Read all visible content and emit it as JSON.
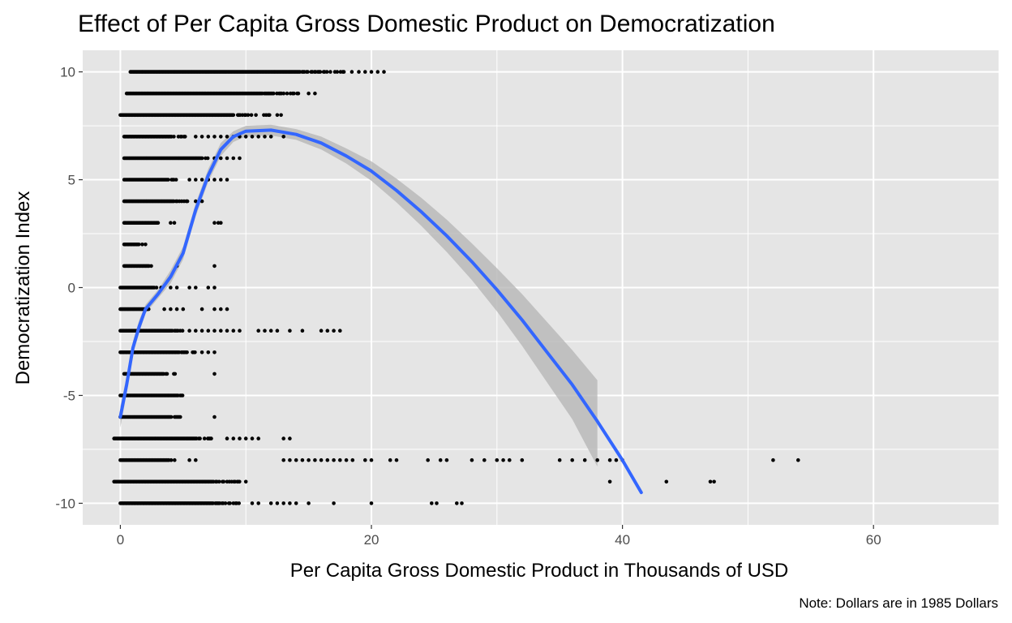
{
  "chart_data": {
    "type": "scatter",
    "title": "Effect of Per Capita Gross Domestic Product on Democratization",
    "xlabel": "Per Capita Gross Domestic Product in Thousands of USD",
    "ylabel": "Democratization Index",
    "caption": "Note: Dollars are in 1985 Dollars",
    "xlim": [
      -3,
      70
    ],
    "ylim": [
      -11,
      11
    ],
    "x_ticks": [
      0,
      20,
      40,
      60
    ],
    "y_ticks": [
      -10,
      -5,
      0,
      5,
      10
    ],
    "grid": true,
    "theme": "gray panel with white gridlines",
    "colors": {
      "panel": "#e5e5e5",
      "grid": "#ffffff",
      "points": "#000000",
      "smooth_line": "#3366ff",
      "ribbon": "#b3b3b3"
    },
    "points": {
      "y_levels": [
        -10,
        -9,
        -8,
        -7,
        -6,
        -5,
        -4,
        -3,
        -2,
        -1,
        0,
        1,
        2,
        3,
        4,
        5,
        6,
        7,
        8,
        9,
        10
      ],
      "dense_ranges": [
        {
          "y": 10,
          "x_from": 0.8,
          "x_to": 18.5
        },
        {
          "y": 9,
          "x_from": 0.5,
          "x_to": 14.5
        },
        {
          "y": 8,
          "x_from": 0.0,
          "x_to": 12.0
        },
        {
          "y": 7,
          "x_from": 0.3,
          "x_to": 5.5
        },
        {
          "y": 6,
          "x_from": 0.3,
          "x_to": 7.0
        },
        {
          "y": 5,
          "x_from": 0.3,
          "x_to": 4.5
        },
        {
          "y": 4,
          "x_from": 0.3,
          "x_to": 5.5
        },
        {
          "y": 3,
          "x_from": 0.3,
          "x_to": 3.5
        },
        {
          "y": 2,
          "x_from": 0.3,
          "x_to": 1.8
        },
        {
          "y": 1,
          "x_from": 0.3,
          "x_to": 2.8
        },
        {
          "y": 0,
          "x_from": 0.0,
          "x_to": 3.5
        },
        {
          "y": -1,
          "x_from": 0.0,
          "x_to": 2.5
        },
        {
          "y": -2,
          "x_from": 0.0,
          "x_to": 5.0
        },
        {
          "y": -3,
          "x_from": 0.0,
          "x_to": 6.0
        },
        {
          "y": -4,
          "x_from": 0.3,
          "x_to": 4.5
        },
        {
          "y": -5,
          "x_from": 0.0,
          "x_to": 5.5
        },
        {
          "y": -6,
          "x_from": 0.0,
          "x_to": 5.0
        },
        {
          "y": -7,
          "x_from": -0.5,
          "x_to": 8.0
        },
        {
          "y": -8,
          "x_from": 0.0,
          "x_to": 4.5
        },
        {
          "y": -9,
          "x_from": -0.5,
          "x_to": 9.5
        },
        {
          "y": -10,
          "x_from": 0.0,
          "x_to": 9.5
        }
      ],
      "extra": [
        {
          "y": 10,
          "x": [
            19.0,
            19.5,
            20.0,
            20.5,
            21.0
          ]
        },
        {
          "y": 9,
          "x": [
            15.0,
            15.5
          ]
        },
        {
          "y": 8,
          "x": [
            12.5,
            12.8
          ]
        },
        {
          "y": 7,
          "x": [
            6.0,
            6.5,
            7.0,
            7.5,
            8.0,
            8.5,
            9.0,
            9.5,
            10.0,
            10.5,
            11.0,
            11.5,
            12.0,
            13.0
          ]
        },
        {
          "y": 6,
          "x": [
            7.5,
            8.0,
            8.5,
            9.0,
            9.5
          ]
        },
        {
          "y": 5,
          "x": [
            5.5,
            6.0,
            6.5,
            7.0,
            7.5,
            8.0,
            8.5
          ]
        },
        {
          "y": 4,
          "x": [
            6.0,
            6.5
          ]
        },
        {
          "y": 3,
          "x": [
            4.0,
            4.3,
            7.5,
            7.8,
            8.0
          ]
        },
        {
          "y": 2,
          "x": [
            2.0
          ]
        },
        {
          "y": 1,
          "x": [
            4.5,
            7.5
          ]
        },
        {
          "y": 0,
          "x": [
            4.0,
            4.5,
            5.5,
            6.0,
            7.0,
            7.5
          ]
        },
        {
          "y": -1,
          "x": [
            3.5,
            4.0,
            4.5,
            5.0,
            6.5,
            7.5,
            8.0,
            8.5
          ]
        },
        {
          "y": -2,
          "x": [
            5.5,
            6.0,
            6.5,
            7.0,
            7.5,
            8.0,
            8.5,
            9.0,
            9.5,
            11.0,
            11.5,
            12.0,
            12.5,
            13.5,
            14.5,
            16.0,
            16.5,
            17.0,
            17.5
          ]
        },
        {
          "y": -3,
          "x": [
            6.5,
            7.0,
            7.5
          ]
        },
        {
          "y": -4,
          "x": [
            7.5
          ]
        },
        {
          "y": -6,
          "x": [
            7.5
          ]
        },
        {
          "y": -7,
          "x": [
            8.5,
            9.0,
            9.5,
            10.0,
            10.5,
            11.0,
            13.0,
            13.5
          ]
        },
        {
          "y": -8,
          "x": [
            5.5,
            6.0,
            13.0,
            13.5,
            14.0,
            14.5,
            15.0,
            15.5,
            16.0,
            16.5,
            17.0,
            17.5,
            18.0,
            18.5,
            19.5,
            20.0,
            21.5,
            22.0,
            24.5,
            25.5,
            26.0,
            28.0,
            29.0,
            30.0,
            30.5,
            31.0,
            32.0,
            35.0,
            36.0,
            37.0,
            38.0,
            39.0,
            39.5,
            40.0,
            52.0,
            54.0
          ]
        },
        {
          "y": -9,
          "x": [
            10.0,
            39.0,
            43.5,
            47.0,
            47.3
          ]
        },
        {
          "y": -10,
          "x": [
            10.5,
            11.0,
            12.0,
            12.5,
            13.0,
            13.5,
            14.0,
            15.0,
            17.0,
            20.0,
            24.8,
            25.2,
            26.8,
            27.2
          ]
        }
      ]
    },
    "smooth": {
      "method": "loess",
      "x": [
        0,
        0.5,
        1,
        1.5,
        2,
        3,
        4,
        5,
        6,
        7,
        8,
        9,
        10,
        12,
        14,
        16,
        18,
        20,
        22,
        24,
        26,
        28,
        30,
        32,
        34,
        36,
        38,
        40,
        41.5
      ],
      "y": [
        -6,
        -4.5,
        -2.8,
        -1.8,
        -1.0,
        -0.3,
        0.5,
        1.6,
        3.6,
        5.2,
        6.4,
        7.0,
        7.25,
        7.3,
        7.1,
        6.7,
        6.1,
        5.4,
        4.5,
        3.5,
        2.4,
        1.2,
        -0.1,
        -1.5,
        -3.0,
        -4.5,
        -6.2,
        -8.0,
        -9.5
      ],
      "se_lower": [
        -6.5,
        -4.9,
        -3.1,
        -2.1,
        -1.2,
        -0.5,
        0.2,
        1.3,
        3.3,
        4.9,
        6.1,
        6.75,
        7.0,
        7.05,
        6.85,
        6.4,
        5.75,
        4.95,
        3.95,
        2.85,
        1.65,
        0.35,
        -1.1,
        -2.7,
        -4.4,
        -6.1,
        -8.3,
        null,
        null
      ],
      "se_upper": [
        -5.5,
        -4.1,
        -2.5,
        -1.5,
        -0.8,
        -0.1,
        0.8,
        1.9,
        3.9,
        5.5,
        6.7,
        7.25,
        7.5,
        7.55,
        7.35,
        7.0,
        6.45,
        5.85,
        5.05,
        4.15,
        3.15,
        2.05,
        0.9,
        -0.3,
        -1.6,
        -2.9,
        -4.3,
        null,
        null
      ]
    }
  }
}
